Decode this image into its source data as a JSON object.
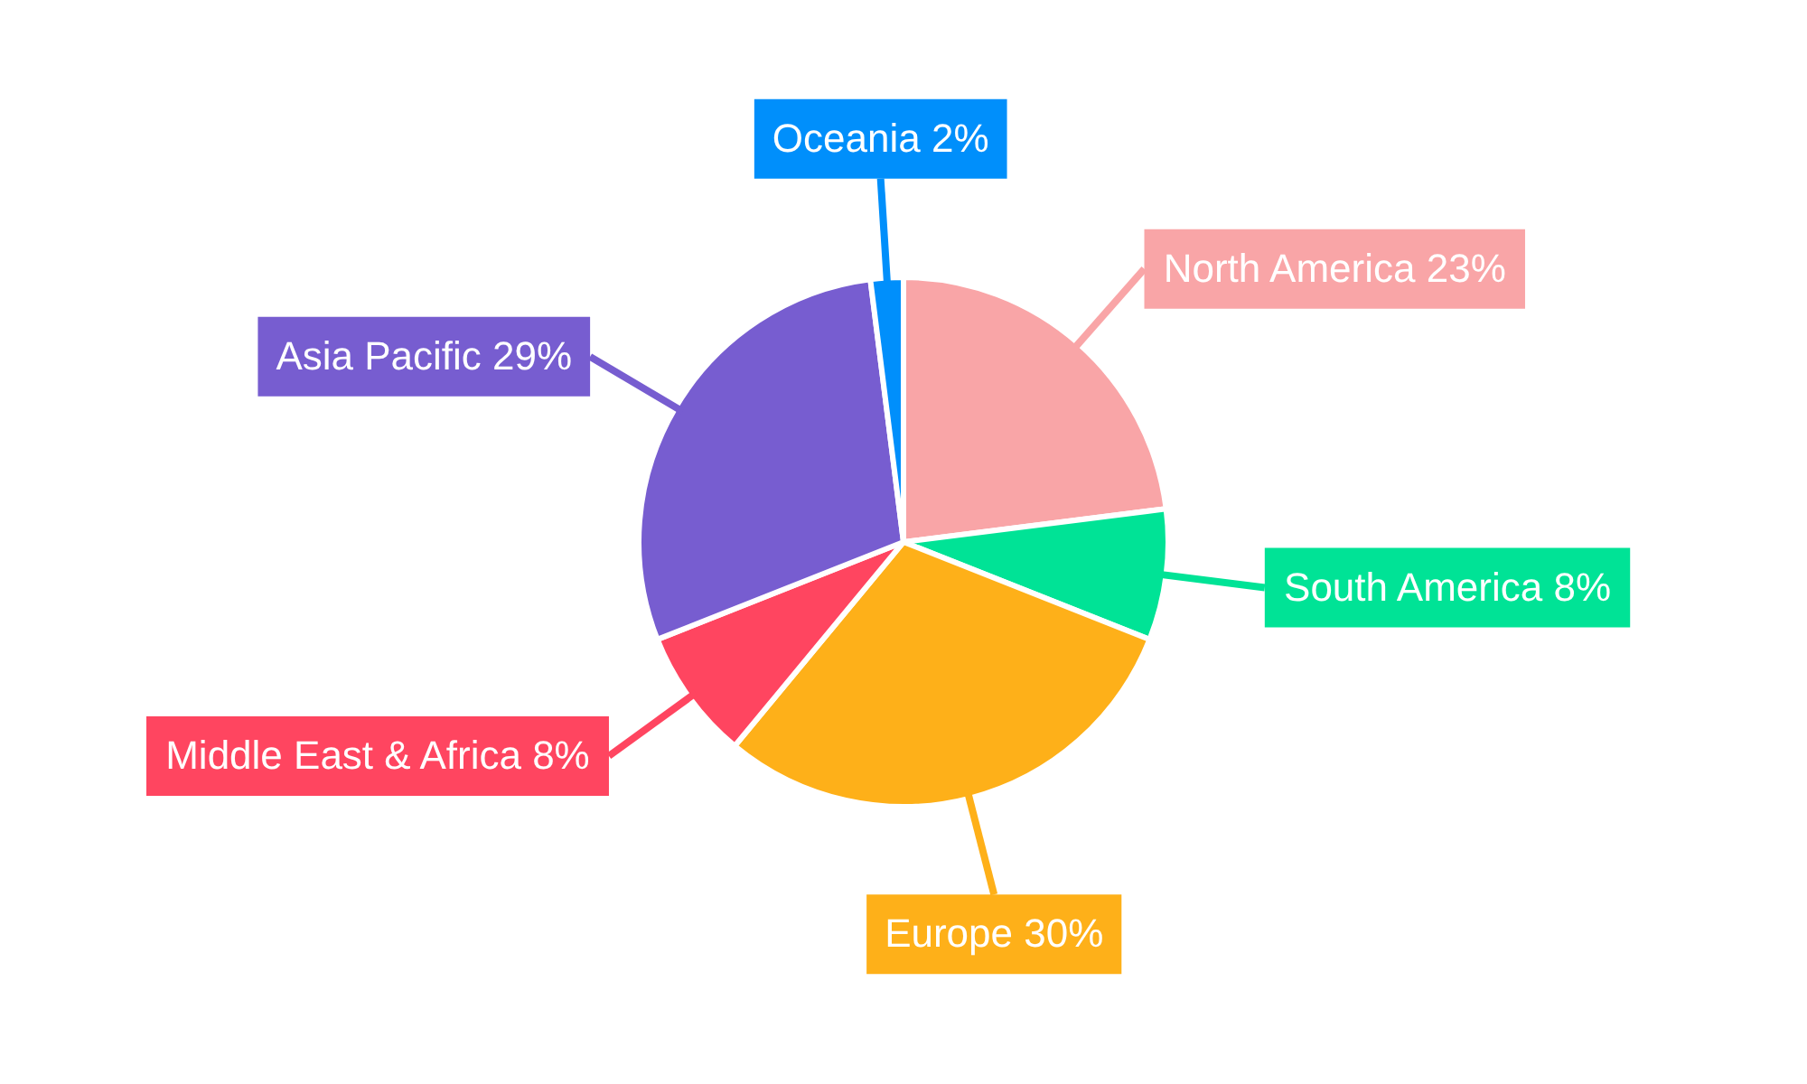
{
  "chart_data": {
    "type": "pie",
    "categories": [
      "North America",
      "South America",
      "Europe",
      "Middle East & Africa",
      "Asia Pacific",
      "Oceania"
    ],
    "values": [
      23,
      8,
      30,
      8,
      29,
      2
    ],
    "value_labels": [
      "23%",
      "8%",
      "30%",
      "8%",
      "29%",
      "2%"
    ],
    "colors": [
      "#f9a5a7",
      "#00e396",
      "#feb019",
      "#ff4560",
      "#775dd0",
      "#008ffb"
    ],
    "legend": false
  }
}
